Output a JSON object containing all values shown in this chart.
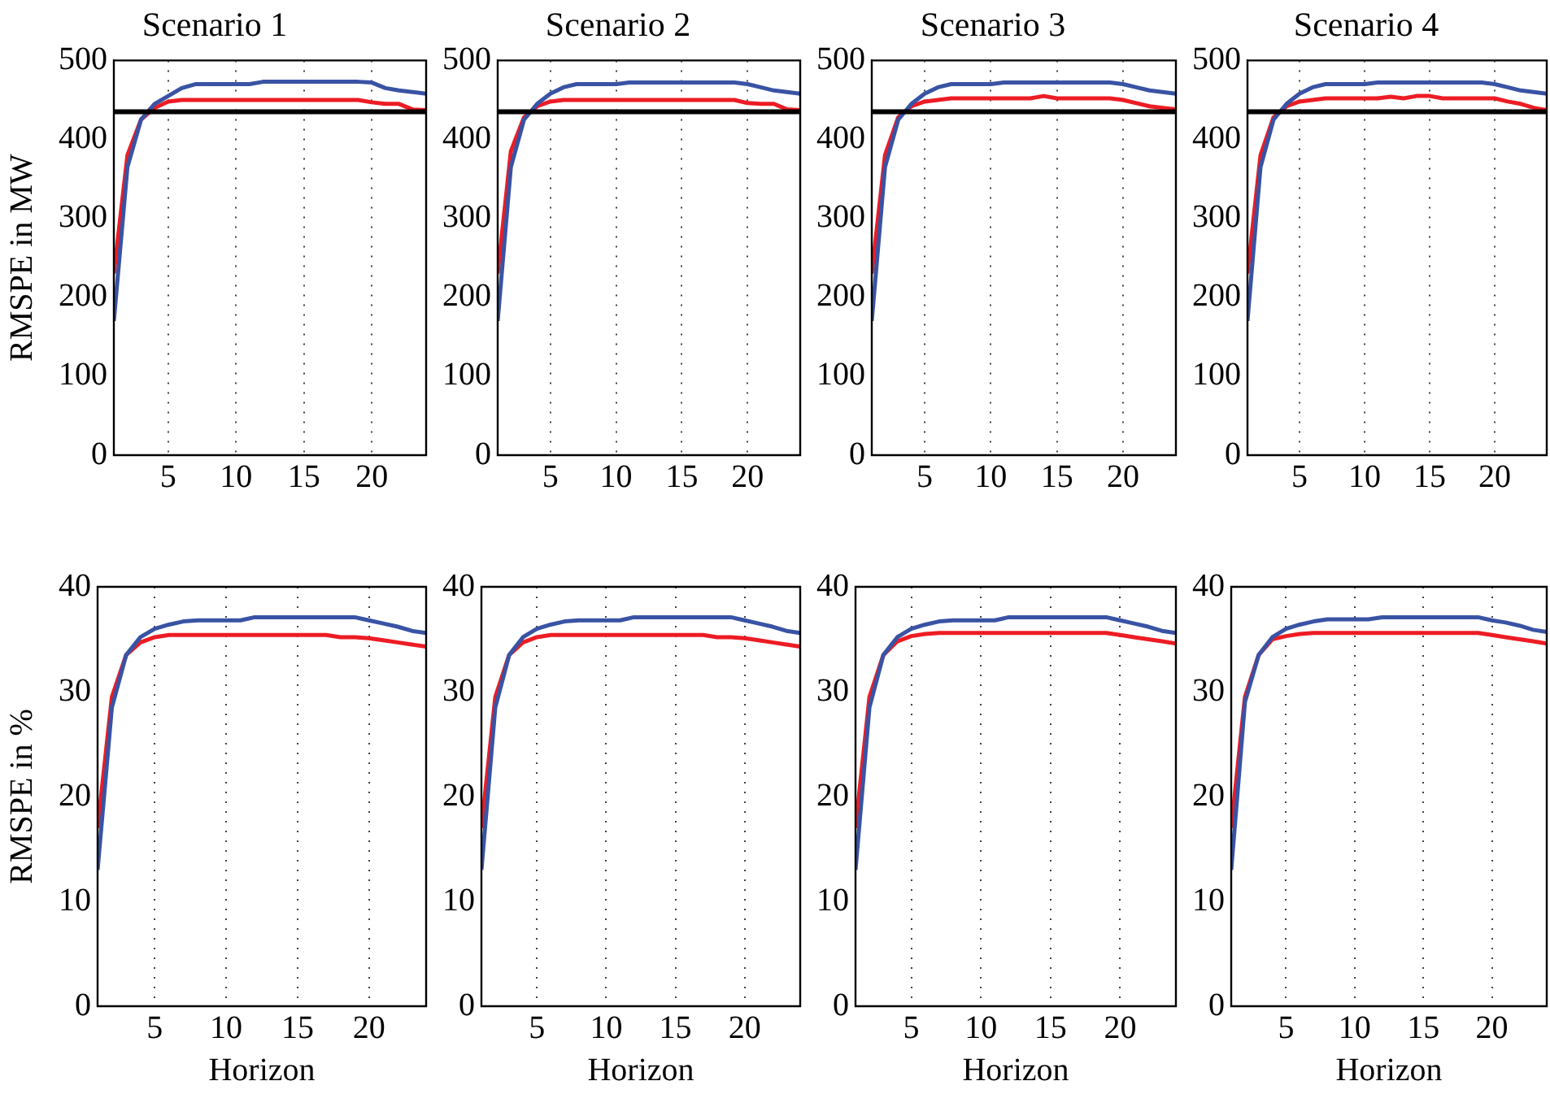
{
  "chart_data": [
    {
      "type": "line",
      "title": "Scenario 1",
      "ylabel": "RMSPE in MW",
      "x": [
        1,
        2,
        3,
        4,
        5,
        6,
        7,
        8,
        9,
        10,
        11,
        12,
        13,
        14,
        15,
        16,
        17,
        18,
        19,
        20,
        21,
        22,
        23,
        24
      ],
      "xlim": [
        1,
        24
      ],
      "xticks": [
        5,
        10,
        15,
        20
      ],
      "ylim": [
        0,
        500
      ],
      "yticks": [
        0,
        100,
        200,
        300,
        400,
        500
      ],
      "grid": "x",
      "ref_lines": [
        {
          "axis": "y",
          "value": 435,
          "color": "#000000"
        }
      ],
      "series": [
        {
          "color": "#3953a4",
          "values": [
            170,
            365,
            425,
            445,
            455,
            465,
            470,
            470,
            470,
            470,
            470,
            473,
            473,
            473,
            473,
            473,
            473,
            473,
            473,
            472,
            465,
            462,
            460,
            458
          ]
        },
        {
          "color": "#ed1c24",
          "values": [
            230,
            380,
            425,
            440,
            448,
            450,
            450,
            450,
            450,
            450,
            450,
            450,
            450,
            450,
            450,
            450,
            450,
            450,
            450,
            447,
            445,
            445,
            438,
            437
          ]
        }
      ]
    },
    {
      "type": "line",
      "title": "Scenario 2",
      "x": [
        1,
        2,
        3,
        4,
        5,
        6,
        7,
        8,
        9,
        10,
        11,
        12,
        13,
        14,
        15,
        16,
        17,
        18,
        19,
        20,
        21,
        22,
        23,
        24
      ],
      "xlim": [
        1,
        24
      ],
      "xticks": [
        5,
        10,
        15,
        20
      ],
      "ylim": [
        0,
        500
      ],
      "yticks": [
        0,
        100,
        200,
        300,
        400,
        500
      ],
      "grid": "x",
      "ref_lines": [
        {
          "axis": "y",
          "value": 435,
          "color": "#000000"
        }
      ],
      "series": [
        {
          "color": "#3953a4",
          "values": [
            170,
            365,
            425,
            445,
            458,
            466,
            470,
            470,
            470,
            470,
            472,
            472,
            472,
            472,
            472,
            472,
            472,
            472,
            472,
            470,
            466,
            462,
            460,
            458
          ]
        },
        {
          "color": "#ed1c24",
          "values": [
            230,
            385,
            428,
            442,
            448,
            450,
            450,
            450,
            450,
            450,
            450,
            450,
            450,
            450,
            450,
            450,
            450,
            450,
            450,
            446,
            445,
            445,
            438,
            437
          ]
        }
      ]
    },
    {
      "type": "line",
      "title": "Scenario 3",
      "x": [
        1,
        2,
        3,
        4,
        5,
        6,
        7,
        8,
        9,
        10,
        11,
        12,
        13,
        14,
        15,
        16,
        17,
        18,
        19,
        20,
        21,
        22,
        23,
        24
      ],
      "xlim": [
        1,
        24
      ],
      "xticks": [
        5,
        10,
        15,
        20
      ],
      "ylim": [
        0,
        500
      ],
      "yticks": [
        0,
        100,
        200,
        300,
        400,
        500
      ],
      "grid": "x",
      "ref_lines": [
        {
          "axis": "y",
          "value": 435,
          "color": "#000000"
        }
      ],
      "series": [
        {
          "color": "#3953a4",
          "values": [
            170,
            365,
            425,
            445,
            458,
            466,
            470,
            470,
            470,
            470,
            472,
            472,
            472,
            472,
            472,
            472,
            472,
            472,
            472,
            470,
            466,
            462,
            460,
            458
          ]
        },
        {
          "color": "#ed1c24",
          "values": [
            230,
            380,
            428,
            442,
            448,
            450,
            452,
            452,
            452,
            452,
            452,
            452,
            452,
            455,
            452,
            452,
            452,
            452,
            452,
            450,
            446,
            442,
            440,
            438
          ]
        }
      ]
    },
    {
      "type": "line",
      "title": "Scenario 4",
      "x": [
        1,
        2,
        3,
        4,
        5,
        6,
        7,
        8,
        9,
        10,
        11,
        12,
        13,
        14,
        15,
        16,
        17,
        18,
        19,
        20,
        21,
        22,
        23,
        24
      ],
      "xlim": [
        1,
        24
      ],
      "xticks": [
        5,
        10,
        15,
        20
      ],
      "ylim": [
        0,
        500
      ],
      "yticks": [
        0,
        100,
        200,
        300,
        400,
        500
      ],
      "grid": "x",
      "ref_lines": [
        {
          "axis": "y",
          "value": 435,
          "color": "#000000"
        }
      ],
      "series": [
        {
          "color": "#3953a4",
          "values": [
            170,
            365,
            425,
            445,
            458,
            466,
            470,
            470,
            470,
            470,
            472,
            472,
            472,
            472,
            472,
            472,
            472,
            472,
            472,
            470,
            466,
            462,
            460,
            458
          ]
        },
        {
          "color": "#ed1c24",
          "values": [
            230,
            380,
            428,
            442,
            448,
            450,
            452,
            452,
            452,
            452,
            452,
            454,
            452,
            455,
            455,
            452,
            452,
            452,
            452,
            452,
            448,
            445,
            440,
            437
          ]
        }
      ]
    },
    {
      "type": "line",
      "xlabel": "Horizon",
      "ylabel": "RMSPE in %",
      "x": [
        1,
        2,
        3,
        4,
        5,
        6,
        7,
        8,
        9,
        10,
        11,
        12,
        13,
        14,
        15,
        16,
        17,
        18,
        19,
        20,
        21,
        22,
        23,
        24
      ],
      "xlim": [
        1,
        24
      ],
      "xticks": [
        5,
        10,
        15,
        20
      ],
      "ylim": [
        0,
        40
      ],
      "yticks": [
        0,
        10,
        20,
        30,
        40
      ],
      "grid": "x",
      "series": [
        {
          "color": "#3953a4",
          "values": [
            13,
            28.5,
            33.5,
            35.2,
            36,
            36.4,
            36.7,
            36.8,
            36.8,
            36.8,
            36.8,
            37.1,
            37.1,
            37.1,
            37.1,
            37.1,
            37.1,
            37.1,
            37.1,
            36.8,
            36.5,
            36.2,
            35.8,
            35.6
          ]
        },
        {
          "color": "#ed1c24",
          "values": [
            17,
            29.5,
            33.5,
            34.7,
            35.2,
            35.4,
            35.4,
            35.4,
            35.4,
            35.4,
            35.4,
            35.4,
            35.4,
            35.4,
            35.4,
            35.4,
            35.4,
            35.2,
            35.2,
            35.1,
            34.9,
            34.7,
            34.5,
            34.3
          ]
        }
      ]
    },
    {
      "type": "line",
      "xlabel": "Horizon",
      "x": [
        1,
        2,
        3,
        4,
        5,
        6,
        7,
        8,
        9,
        10,
        11,
        12,
        13,
        14,
        15,
        16,
        17,
        18,
        19,
        20,
        21,
        22,
        23,
        24
      ],
      "xlim": [
        1,
        24
      ],
      "xticks": [
        5,
        10,
        15,
        20
      ],
      "ylim": [
        0,
        40
      ],
      "yticks": [
        0,
        10,
        20,
        30,
        40
      ],
      "grid": "x",
      "series": [
        {
          "color": "#3953a4",
          "values": [
            13,
            28.5,
            33.5,
            35.2,
            36,
            36.4,
            36.7,
            36.8,
            36.8,
            36.8,
            36.8,
            37.1,
            37.1,
            37.1,
            37.1,
            37.1,
            37.1,
            37.1,
            37.1,
            36.8,
            36.5,
            36.2,
            35.8,
            35.6
          ]
        },
        {
          "color": "#ed1c24",
          "values": [
            17,
            29.5,
            33.5,
            34.7,
            35.2,
            35.4,
            35.4,
            35.4,
            35.4,
            35.4,
            35.4,
            35.4,
            35.4,
            35.4,
            35.4,
            35.4,
            35.4,
            35.2,
            35.2,
            35.1,
            34.9,
            34.7,
            34.5,
            34.3
          ]
        }
      ]
    },
    {
      "type": "line",
      "xlabel": "Horizon",
      "x": [
        1,
        2,
        3,
        4,
        5,
        6,
        7,
        8,
        9,
        10,
        11,
        12,
        13,
        14,
        15,
        16,
        17,
        18,
        19,
        20,
        21,
        22,
        23,
        24
      ],
      "xlim": [
        1,
        24
      ],
      "xticks": [
        5,
        10,
        15,
        20
      ],
      "ylim": [
        0,
        40
      ],
      "yticks": [
        0,
        10,
        20,
        30,
        40
      ],
      "grid": "x",
      "series": [
        {
          "color": "#3953a4",
          "values": [
            13,
            28.5,
            33.5,
            35.2,
            36,
            36.4,
            36.7,
            36.8,
            36.8,
            36.8,
            36.8,
            37.1,
            37.1,
            37.1,
            37.1,
            37.1,
            37.1,
            37.1,
            37.1,
            36.8,
            36.5,
            36.2,
            35.8,
            35.6
          ]
        },
        {
          "color": "#ed1c24",
          "values": [
            17,
            29.5,
            33.5,
            34.8,
            35.3,
            35.5,
            35.6,
            35.6,
            35.6,
            35.6,
            35.6,
            35.6,
            35.6,
            35.6,
            35.6,
            35.6,
            35.6,
            35.6,
            35.6,
            35.4,
            35.2,
            35,
            34.8,
            34.6
          ]
        }
      ]
    },
    {
      "type": "line",
      "xlabel": "Horizon",
      "x": [
        1,
        2,
        3,
        4,
        5,
        6,
        7,
        8,
        9,
        10,
        11,
        12,
        13,
        14,
        15,
        16,
        17,
        18,
        19,
        20,
        21,
        22,
        23,
        24
      ],
      "xlim": [
        1,
        24
      ],
      "xticks": [
        5,
        10,
        15,
        20
      ],
      "ylim": [
        0,
        40
      ],
      "yticks": [
        0,
        10,
        20,
        30,
        40
      ],
      "grid": "x",
      "series": [
        {
          "color": "#3953a4",
          "values": [
            13,
            29,
            33.5,
            35.2,
            36,
            36.4,
            36.7,
            36.9,
            36.9,
            36.9,
            36.9,
            37.1,
            37.1,
            37.1,
            37.1,
            37.1,
            37.1,
            37.1,
            37.1,
            36.8,
            36.6,
            36.3,
            35.9,
            35.7
          ]
        },
        {
          "color": "#ed1c24",
          "values": [
            17,
            29.5,
            33.5,
            35,
            35.3,
            35.5,
            35.6,
            35.6,
            35.6,
            35.6,
            35.6,
            35.6,
            35.6,
            35.6,
            35.6,
            35.6,
            35.6,
            35.6,
            35.6,
            35.4,
            35.2,
            35,
            34.8,
            34.6
          ]
        }
      ]
    }
  ]
}
